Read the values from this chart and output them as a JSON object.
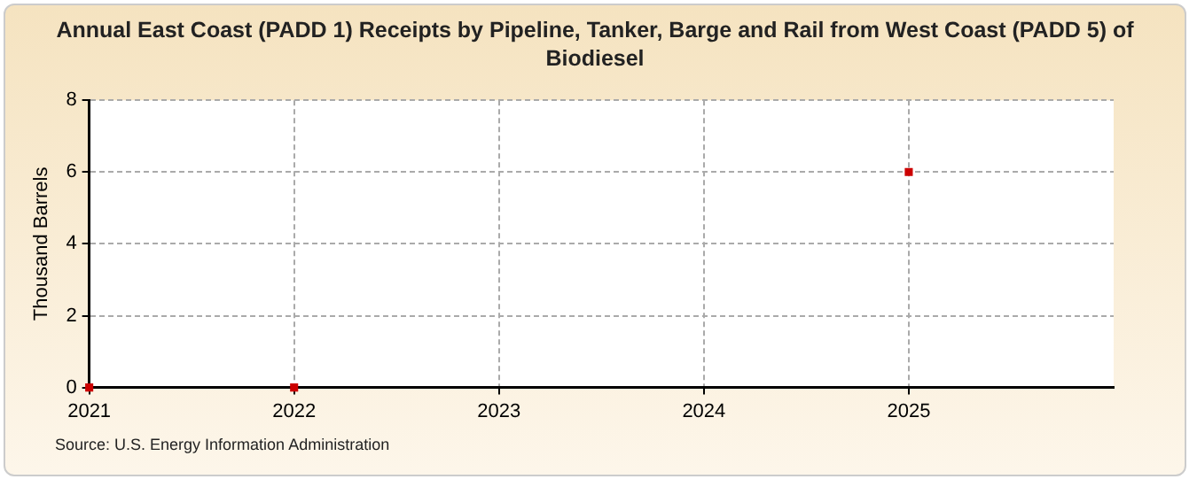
{
  "chart_data": {
    "type": "scatter",
    "title": "Annual East Coast (PADD 1) Receipts by Pipeline, Tanker, Barge and Rail from West Coast (PADD 5) of Biodiesel",
    "ylabel": "Thousand Barrels",
    "x": [
      2021,
      2022,
      2025
    ],
    "series": [
      {
        "color": "#cc0000",
        "values": [
          0,
          0,
          6
        ]
      }
    ],
    "xlim": [
      2021,
      2026
    ],
    "xticks": [
      2021,
      2022,
      2023,
      2024,
      2025
    ],
    "ylim": [
      0,
      8
    ],
    "yticks": [
      0,
      2,
      4,
      6,
      8
    ],
    "grid": true,
    "marker": "square",
    "legend": false,
    "annotations": [
      "Source: U.S. Energy Information Administration"
    ]
  }
}
